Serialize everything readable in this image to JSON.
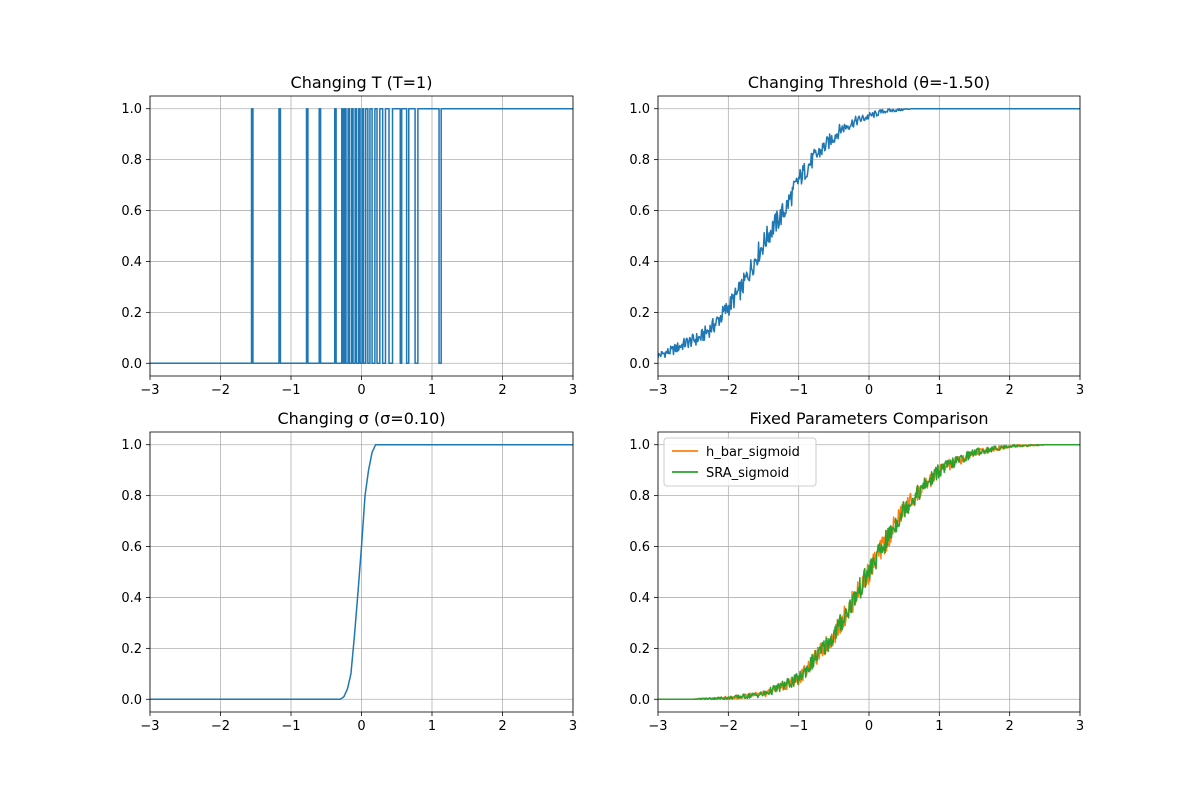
{
  "chart_data": [
    {
      "type": "line",
      "title": "Changing T (T=1)",
      "xlabel": "",
      "ylabel": "",
      "xlim": [
        -3,
        3
      ],
      "ylim": [
        -0.05,
        1.05
      ],
      "xticks": [
        -3,
        -2,
        -1,
        0,
        1,
        2,
        3
      ],
      "yticks": [
        0.0,
        0.2,
        0.4,
        0.6,
        0.8,
        1.0
      ],
      "xtick_labels": [
        "−3",
        "−2",
        "−1",
        "0",
        "1",
        "2",
        "3"
      ],
      "ytick_labels": [
        "0.0",
        "0.2",
        "0.4",
        "0.6",
        "0.8",
        "1.0"
      ],
      "grid": true,
      "series": [
        {
          "color": "#1f77b4",
          "note_shape": "binary step 0/1 with spikes",
          "x": [
            -3,
            -1.56,
            -1.56,
            -1.54,
            -1.54,
            -1.17,
            -1.17,
            -1.15,
            -1.15,
            -0.78,
            -0.78,
            -0.76,
            -0.76,
            -0.6,
            -0.6,
            -0.58,
            -0.58,
            -0.38,
            -0.38,
            -0.36,
            -0.36,
            -0.28,
            -0.28,
            -0.26,
            -0.26,
            -0.24,
            -0.24,
            -0.22,
            -0.22,
            -0.19,
            -0.19,
            -0.17,
            -0.17,
            -0.14,
            -0.14,
            -0.12,
            -0.12,
            -0.09,
            -0.09,
            -0.07,
            -0.07,
            -0.04,
            -0.04,
            -0.02,
            -0.02,
            0.01,
            0.01,
            0.03,
            0.03,
            0.06,
            0.06,
            0.09,
            0.09,
            0.12,
            0.12,
            0.15,
            0.15,
            0.19,
            0.19,
            0.22,
            0.22,
            0.26,
            0.26,
            0.3,
            0.3,
            0.34,
            0.34,
            0.39,
            0.39,
            0.44,
            0.44,
            0.55,
            0.55,
            0.57,
            0.57,
            0.64,
            0.64,
            0.67,
            0.67,
            0.76,
            0.76,
            0.8,
            0.8,
            1.1,
            1.1,
            1.13,
            1.13,
            3
          ],
          "y": [
            0,
            0,
            1,
            1,
            0,
            0,
            1,
            1,
            0,
            0,
            1,
            1,
            0,
            0,
            1,
            1,
            0,
            0,
            1,
            1,
            0,
            0,
            1,
            1,
            0,
            0,
            1,
            1,
            0,
            0,
            1,
            1,
            0,
            0,
            1,
            1,
            0,
            0,
            1,
            1,
            0,
            0,
            1,
            1,
            0,
            0,
            1,
            1,
            0,
            0,
            1,
            1,
            0,
            0,
            1,
            1,
            0,
            0,
            1,
            1,
            0,
            0,
            1,
            1,
            0,
            0,
            1,
            1,
            0,
            0,
            1,
            1,
            0,
            0,
            1,
            1,
            0,
            0,
            1,
            1,
            0,
            0,
            1,
            1,
            0,
            0,
            1,
            1
          ]
        }
      ]
    },
    {
      "type": "line",
      "title": "Changing Threshold (θ=-1.50)",
      "xlabel": "",
      "ylabel": "",
      "xlim": [
        -3,
        3
      ],
      "ylim": [
        -0.05,
        1.05
      ],
      "xticks": [
        -3,
        -2,
        -1,
        0,
        1,
        2,
        3
      ],
      "yticks": [
        0.0,
        0.2,
        0.4,
        0.6,
        0.8,
        1.0
      ],
      "xtick_labels": [
        "−3",
        "−2",
        "−1",
        "0",
        "1",
        "2",
        "3"
      ],
      "ytick_labels": [
        "0.0",
        "0.2",
        "0.4",
        "0.6",
        "0.8",
        "1.0"
      ],
      "grid": true,
      "series": [
        {
          "color": "#1f77b4",
          "x": [
            -3.0,
            -2.8,
            -2.6,
            -2.4,
            -2.2,
            -2.0,
            -1.8,
            -1.6,
            -1.4,
            -1.2,
            -1.0,
            -0.8,
            -0.6,
            -0.4,
            -0.2,
            0.0,
            0.2,
            0.4,
            0.6,
            0.8,
            1.0,
            1.5,
            2.0,
            2.5,
            3.0
          ],
          "y": [
            0.03,
            0.05,
            0.08,
            0.1,
            0.15,
            0.22,
            0.3,
            0.42,
            0.52,
            0.6,
            0.72,
            0.8,
            0.86,
            0.92,
            0.95,
            0.97,
            0.99,
            0.995,
            1.0,
            1.0,
            1.0,
            1.0,
            1.0,
            1.0,
            1.0
          ]
        }
      ]
    },
    {
      "type": "line",
      "title": "Changing σ (σ=0.10)",
      "xlabel": "",
      "ylabel": "",
      "xlim": [
        -3,
        3
      ],
      "ylim": [
        -0.05,
        1.05
      ],
      "xticks": [
        -3,
        -2,
        -1,
        0,
        1,
        2,
        3
      ],
      "yticks": [
        0.0,
        0.2,
        0.4,
        0.6,
        0.8,
        1.0
      ],
      "xtick_labels": [
        "−3",
        "−2",
        "−1",
        "0",
        "1",
        "2",
        "3"
      ],
      "ytick_labels": [
        "0.0",
        "0.2",
        "0.4",
        "0.6",
        "0.8",
        "1.0"
      ],
      "grid": true,
      "series": [
        {
          "color": "#1f77b4",
          "x": [
            -3.0,
            -0.3,
            -0.25,
            -0.2,
            -0.15,
            -0.1,
            -0.05,
            0.0,
            0.05,
            0.1,
            0.15,
            0.2,
            0.25,
            3.0
          ],
          "y": [
            0.0,
            0.0,
            0.01,
            0.04,
            0.1,
            0.25,
            0.42,
            0.6,
            0.8,
            0.9,
            0.97,
            1.0,
            1.0,
            1.0
          ]
        }
      ]
    },
    {
      "type": "line",
      "title": "Fixed Parameters Comparison",
      "xlabel": "",
      "ylabel": "",
      "xlim": [
        -3,
        3
      ],
      "ylim": [
        -0.05,
        1.05
      ],
      "xticks": [
        -3,
        -2,
        -1,
        0,
        1,
        2,
        3
      ],
      "yticks": [
        0.0,
        0.2,
        0.4,
        0.6,
        0.8,
        1.0
      ],
      "xtick_labels": [
        "−3",
        "−2",
        "−1",
        "0",
        "1",
        "2",
        "3"
      ],
      "ytick_labels": [
        "0.0",
        "0.2",
        "0.4",
        "0.6",
        "0.8",
        "1.0"
      ],
      "grid": true,
      "legend": "top-left",
      "series": [
        {
          "name": "h_bar_sigmoid",
          "color": "#ff7f0e",
          "x": [
            -3.0,
            -2.5,
            -2.0,
            -1.5,
            -1.0,
            -0.5,
            0.0,
            0.5,
            1.0,
            1.5,
            2.0,
            2.5,
            3.0
          ],
          "y": [
            0.0,
            0.0,
            0.005,
            0.02,
            0.08,
            0.25,
            0.5,
            0.75,
            0.9,
            0.97,
            0.995,
            1.0,
            1.0
          ]
        },
        {
          "name": "SRA_sigmoid",
          "color": "#2ca02c",
          "x": [
            -3.0,
            -2.5,
            -2.0,
            -1.5,
            -1.0,
            -0.5,
            0.0,
            0.5,
            1.0,
            1.5,
            2.0,
            2.5,
            3.0
          ],
          "y": [
            0.0,
            0.0,
            0.005,
            0.02,
            0.08,
            0.25,
            0.5,
            0.75,
            0.9,
            0.97,
            0.995,
            1.0,
            1.0
          ]
        }
      ]
    }
  ]
}
